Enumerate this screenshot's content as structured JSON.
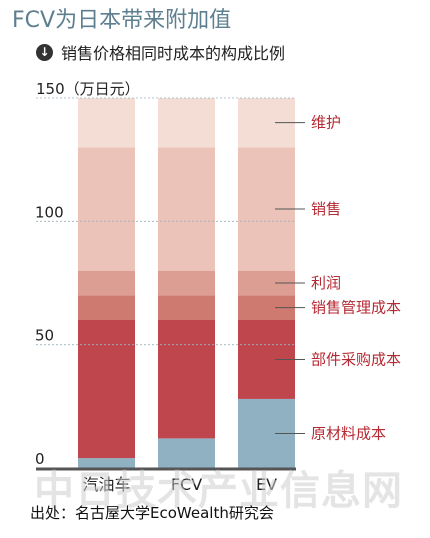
{
  "header": {
    "title": "FCV为日本带来附加值",
    "subtitle": "销售价格相同时成本的构成比例",
    "subtitle_icon": "arrow-down-circle-icon"
  },
  "footer": {
    "source": "出处：名古屋大学EcoWealth研究会",
    "watermark": "中日技术产业信息网"
  },
  "chart_data": {
    "type": "bar",
    "stacked": true,
    "title": "",
    "ylabel": "150（万日元）",
    "xlabel": "",
    "ylim": [
      0,
      150
    ],
    "yticks": [
      {
        "value": 0,
        "label": "0"
      },
      {
        "value": 50,
        "label": "50"
      },
      {
        "value": 100,
        "label": "100"
      },
      {
        "value": 150,
        "label": ""
      }
    ],
    "categories": [
      "汽油车",
      "FCV",
      "EV"
    ],
    "legend_position": "right",
    "series": [
      {
        "name": "原材料成本",
        "color": "#8fb1c2",
        "values": [
          4,
          12,
          28
        ]
      },
      {
        "name": "部件采购成本",
        "color": "#c0464d",
        "values": [
          56,
          48,
          32
        ]
      },
      {
        "name": "销售管理成本",
        "color": "#cf7a70",
        "values": [
          10,
          10,
          10
        ]
      },
      {
        "name": "利润",
        "color": "#dc9e93",
        "values": [
          10,
          10,
          10
        ]
      },
      {
        "name": "销售",
        "color": "#ebc3b8",
        "values": [
          50,
          50,
          50
        ]
      },
      {
        "name": "维护",
        "color": "#f3ddd5",
        "values": [
          20,
          20,
          20
        ]
      }
    ],
    "label_color": "#b52a33",
    "axis_color": "#555555",
    "grid": true
  }
}
